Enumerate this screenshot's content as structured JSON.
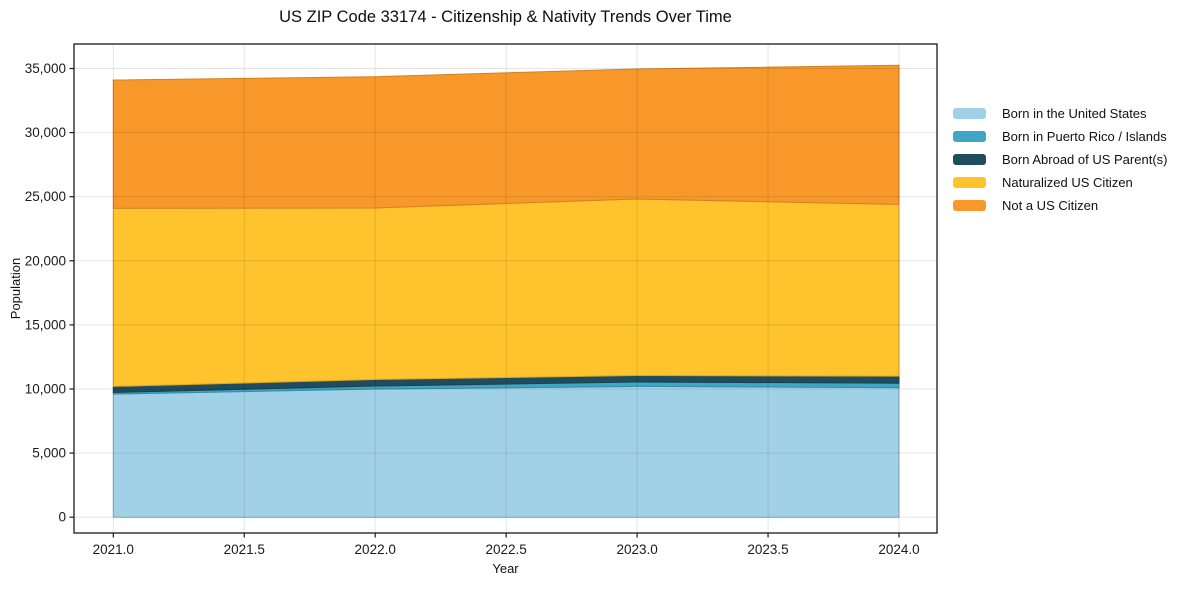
{
  "figure": {
    "title": "US ZIP Code 33174 - Citizenship & Nativity Trends Over Time"
  },
  "chart_data": {
    "type": "area",
    "stacked": true,
    "title": "US ZIP Code 33174 - Citizenship & Nativity Trends Over Time",
    "xlabel": "Year",
    "ylabel": "Population",
    "x": [
      2021,
      2022,
      2023,
      2024
    ],
    "series": [
      {
        "name": "Born in the United States",
        "color": "#A1D1E6",
        "values": [
          9600,
          10000,
          10200,
          10100
        ]
      },
      {
        "name": "Born in Puerto Rico / Islands",
        "color": "#3FA6C3",
        "values": [
          130,
          230,
          350,
          350
        ]
      },
      {
        "name": "Born Abroad of US Parent(s)",
        "color": "#1F4C5E",
        "values": [
          470,
          510,
          500,
          550
        ]
      },
      {
        "name": "Naturalized US Citizen",
        "color": "#FEC32D",
        "values": [
          13900,
          13380,
          13770,
          13400
        ]
      },
      {
        "name": "Not a US Citizen",
        "color": "#F8982A",
        "values": [
          10000,
          10240,
          10140,
          10850
        ]
      }
    ],
    "totals": [
      34100,
      34360,
      34960,
      35250
    ],
    "xlim": [
      2020.84,
      2024.15
    ],
    "ylim": [
      -1230,
      37000
    ],
    "x_ticks": {
      "values": [
        2021.0,
        2021.5,
        2022.0,
        2022.5,
        2023.0,
        2023.5,
        2024.0
      ],
      "labels": [
        "2021.0",
        "2021.5",
        "2022.0",
        "2022.5",
        "2023.0",
        "2023.5",
        "2024.0"
      ]
    },
    "y_ticks": {
      "values": [
        0,
        5000,
        10000,
        15000,
        20000,
        25000,
        30000,
        35000
      ],
      "labels": [
        "0",
        "5,000",
        "10,000",
        "15,000",
        "20,000",
        "25,000",
        "30,000",
        "35,000"
      ]
    },
    "grid": true,
    "legend_position": "right-outside",
    "colors": {
      "spine": "#1a1a1a",
      "grid": "rgba(0,0,0,0.10)",
      "tick_label": "#1a1a1a"
    }
  }
}
